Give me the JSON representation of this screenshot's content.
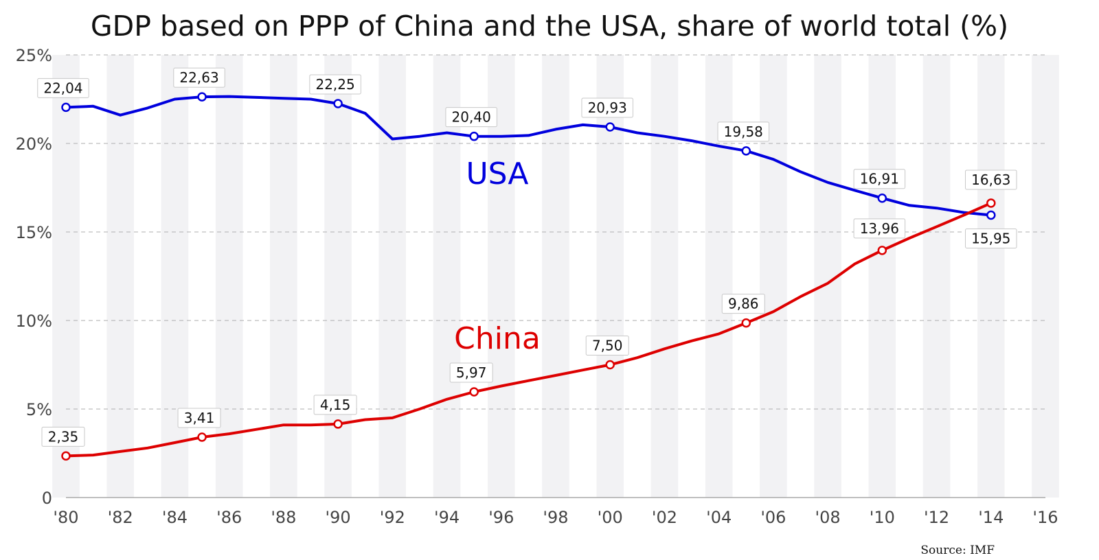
{
  "chart_data": {
    "type": "line",
    "title": "GDP based on PPP of China and the USA, share of world total (%)",
    "xlabel": "",
    "ylabel": "",
    "ylim": [
      0,
      25
    ],
    "xlim": [
      1980,
      2016
    ],
    "y_ticks": [
      {
        "value": 0,
        "label": "0"
      },
      {
        "value": 5,
        "label": "5%"
      },
      {
        "value": 10,
        "label": "10%"
      },
      {
        "value": 15,
        "label": "15%"
      },
      {
        "value": 20,
        "label": "20%"
      },
      {
        "value": 25,
        "label": "25%"
      }
    ],
    "x_ticks": [
      {
        "value": 1980,
        "label": "'80"
      },
      {
        "value": 1982,
        "label": "'82"
      },
      {
        "value": 1984,
        "label": "'84"
      },
      {
        "value": 1986,
        "label": "'86"
      },
      {
        "value": 1988,
        "label": "'88"
      },
      {
        "value": 1990,
        "label": "'90"
      },
      {
        "value": 1992,
        "label": "'92"
      },
      {
        "value": 1994,
        "label": "'94"
      },
      {
        "value": 1996,
        "label": "'96"
      },
      {
        "value": 1998,
        "label": "'98"
      },
      {
        "value": 2000,
        "label": "'00"
      },
      {
        "value": 2002,
        "label": "'02"
      },
      {
        "value": 2004,
        "label": "'04"
      },
      {
        "value": 2006,
        "label": "'06"
      },
      {
        "value": 2008,
        "label": "'08"
      },
      {
        "value": 2010,
        "label": "'10"
      },
      {
        "value": 2012,
        "label": "'12"
      },
      {
        "value": 2014,
        "label": "'14"
      },
      {
        "value": 2016,
        "label": "'16"
      }
    ],
    "grid": true,
    "series": [
      {
        "name": "USA",
        "color": "#0000dd",
        "x": [
          1980,
          1981,
          1982,
          1983,
          1984,
          1985,
          1986,
          1987,
          1988,
          1989,
          1990,
          1991,
          1992,
          1993,
          1994,
          1995,
          1996,
          1997,
          1998,
          1999,
          2000,
          2001,
          2002,
          2003,
          2004,
          2005,
          2006,
          2007,
          2008,
          2009,
          2010,
          2011,
          2012,
          2013,
          2014
        ],
        "values": [
          22.04,
          22.1,
          21.6,
          22.0,
          22.5,
          22.63,
          22.65,
          22.6,
          22.55,
          22.5,
          22.25,
          21.7,
          20.25,
          20.4,
          20.6,
          20.4,
          20.4,
          20.45,
          20.8,
          21.05,
          20.93,
          20.6,
          20.4,
          20.15,
          19.85,
          19.58,
          19.1,
          18.4,
          17.8,
          17.35,
          16.91,
          16.5,
          16.35,
          16.1,
          15.95
        ],
        "labeled_points": [
          {
            "x": 1980,
            "label": "22,04"
          },
          {
            "x": 1985,
            "label": "22,63"
          },
          {
            "x": 1990,
            "label": "22,25"
          },
          {
            "x": 1995,
            "label": "20,40"
          },
          {
            "x": 2000,
            "label": "20,93"
          },
          {
            "x": 2005,
            "label": "19,58"
          },
          {
            "x": 2010,
            "label": "16,91"
          },
          {
            "x": 2014,
            "label": "15,95"
          }
        ]
      },
      {
        "name": "China",
        "color": "#dd0000",
        "x": [
          1980,
          1981,
          1982,
          1983,
          1984,
          1985,
          1986,
          1987,
          1988,
          1989,
          1990,
          1991,
          1992,
          1993,
          1994,
          1995,
          1996,
          1997,
          1998,
          1999,
          2000,
          2001,
          2002,
          2003,
          2004,
          2005,
          2006,
          2007,
          2008,
          2009,
          2010,
          2011,
          2012,
          2013,
          2014
        ],
        "values": [
          2.35,
          2.4,
          2.6,
          2.8,
          3.1,
          3.41,
          3.6,
          3.85,
          4.1,
          4.1,
          4.15,
          4.4,
          4.5,
          5.0,
          5.55,
          5.97,
          6.3,
          6.6,
          6.9,
          7.2,
          7.5,
          7.9,
          8.4,
          8.85,
          9.25,
          9.86,
          10.5,
          11.35,
          12.1,
          13.2,
          13.96,
          14.65,
          15.3,
          15.95,
          16.63
        ],
        "labeled_points": [
          {
            "x": 1980,
            "label": "2,35"
          },
          {
            "x": 1985,
            "label": "3,41"
          },
          {
            "x": 1990,
            "label": "4,15"
          },
          {
            "x": 1995,
            "label": "5,97"
          },
          {
            "x": 2000,
            "label": "7,50"
          },
          {
            "x": 2005,
            "label": "9,86"
          },
          {
            "x": 2010,
            "label": "13,96"
          },
          {
            "x": 2014,
            "label": "16,63"
          }
        ]
      }
    ],
    "series_labels": [
      {
        "text": "USA",
        "color": "#0000dd"
      },
      {
        "text": "China",
        "color": "#dd0000"
      }
    ],
    "source": "Source: IMF"
  }
}
